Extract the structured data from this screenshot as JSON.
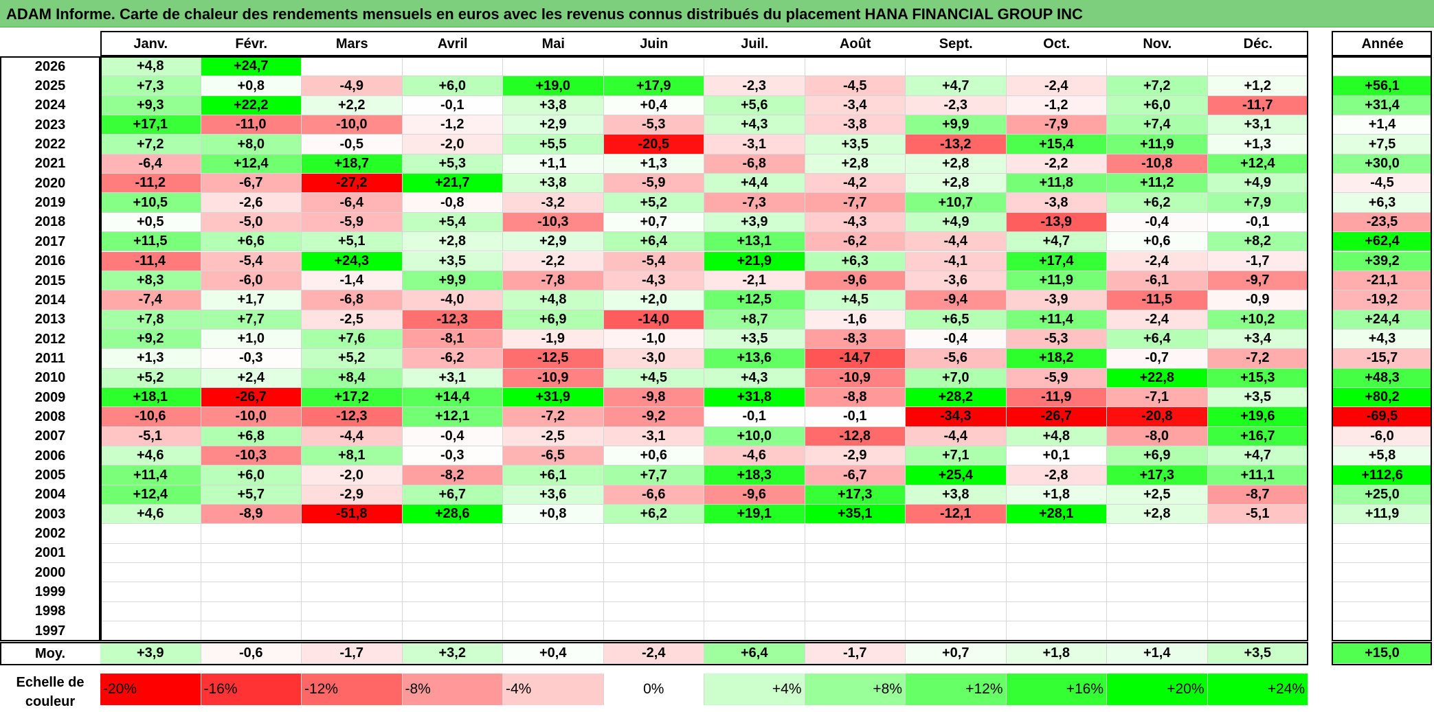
{
  "title": "ADAM Informe. Carte de chaleur des rendements mensuels en euros avec les revenus connus distribués du placement HANA FINANCIAL GROUP INC",
  "months": [
    "Janv.",
    "Févr.",
    "Mars",
    "Avril",
    "Mai",
    "Juin",
    "Juil.",
    "Août",
    "Sept.",
    "Oct.",
    "Nov.",
    "Déc."
  ],
  "annual_label": "Année",
  "average_label": "Moy.",
  "scale_label": "Echelle de couleur",
  "colors": {
    "positive": "#00ff00",
    "negative": "#ff0000",
    "neutral": "#ffffff",
    "title_bg": "#7dcf7d"
  },
  "chart_data": {
    "type": "heatmap",
    "title": "ADAM Informe. Carte de chaleur des rendements mensuels en euros avec les revenus connus distribués du placement HANA FINANCIAL GROUP INC",
    "columns": [
      "Janv.",
      "Févr.",
      "Mars",
      "Avril",
      "Mai",
      "Juin",
      "Juil.",
      "Août",
      "Sept.",
      "Oct.",
      "Nov.",
      "Déc."
    ],
    "rows": [
      {
        "year": "2026",
        "values": [
          "+4,8",
          "+24,7",
          "",
          "",
          "",
          "",
          "",
          "",
          "",
          "",
          "",
          ""
        ],
        "annual": ""
      },
      {
        "year": "2025",
        "values": [
          "+7,3",
          "+0,8",
          "-4,9",
          "+6,0",
          "+19,0",
          "+17,9",
          "-2,3",
          "-4,5",
          "+4,7",
          "-2,4",
          "+7,2",
          "+1,2"
        ],
        "annual": "+56,1"
      },
      {
        "year": "2024",
        "values": [
          "+9,3",
          "+22,2",
          "+2,2",
          "-0,1",
          "+3,8",
          "+0,4",
          "+5,6",
          "-3,4",
          "-2,3",
          "-1,2",
          "+6,0",
          "-11,7"
        ],
        "annual": "+31,4"
      },
      {
        "year": "2023",
        "values": [
          "+17,1",
          "-11,0",
          "-10,0",
          "-1,2",
          "+2,9",
          "-5,3",
          "+4,3",
          "-3,8",
          "+9,9",
          "-7,9",
          "+7,4",
          "+3,1"
        ],
        "annual": "+1,4"
      },
      {
        "year": "2022",
        "values": [
          "+7,2",
          "+8,0",
          "-0,5",
          "-2,0",
          "+5,5",
          "-20,5",
          "-3,1",
          "+3,5",
          "-13,2",
          "+15,4",
          "+11,9",
          "+1,3"
        ],
        "annual": "+7,5"
      },
      {
        "year": "2021",
        "values": [
          "-6,4",
          "+12,4",
          "+18,7",
          "+5,3",
          "+1,1",
          "+1,3",
          "-6,8",
          "+2,8",
          "+2,8",
          "-2,2",
          "-10,8",
          "+12,4"
        ],
        "annual": "+30,0"
      },
      {
        "year": "2020",
        "values": [
          "-11,2",
          "-6,7",
          "-27,2",
          "+21,7",
          "+3,8",
          "-5,9",
          "+4,4",
          "-4,2",
          "+2,8",
          "+11,8",
          "+11,2",
          "+4,9"
        ],
        "annual": "-4,5"
      },
      {
        "year": "2019",
        "values": [
          "+10,5",
          "-2,6",
          "-6,4",
          "-0,8",
          "-3,2",
          "+5,2",
          "-7,3",
          "-7,7",
          "+10,7",
          "-3,8",
          "+6,2",
          "+7,9"
        ],
        "annual": "+6,3"
      },
      {
        "year": "2018",
        "values": [
          "+0,5",
          "-5,0",
          "-5,9",
          "+5,4",
          "-10,3",
          "+0,7",
          "+3,9",
          "-4,3",
          "+4,9",
          "-13,9",
          "-0,4",
          "-0,1"
        ],
        "annual": "-23,5"
      },
      {
        "year": "2017",
        "values": [
          "+11,5",
          "+6,6",
          "+5,1",
          "+2,8",
          "+2,9",
          "+6,4",
          "+13,1",
          "-6,2",
          "-4,4",
          "+4,7",
          "+0,6",
          "+8,2"
        ],
        "annual": "+62,4"
      },
      {
        "year": "2016",
        "values": [
          "-11,4",
          "-5,4",
          "+24,3",
          "+3,5",
          "-2,2",
          "-5,4",
          "+21,9",
          "+6,3",
          "-4,1",
          "+17,4",
          "-2,4",
          "-1,7"
        ],
        "annual": "+39,2"
      },
      {
        "year": "2015",
        "values": [
          "+8,3",
          "-6,0",
          "-1,4",
          "+9,9",
          "-7,8",
          "-4,3",
          "-2,1",
          "-9,6",
          "-3,6",
          "+11,9",
          "-6,1",
          "-9,7"
        ],
        "annual": "-21,1"
      },
      {
        "year": "2014",
        "values": [
          "-7,4",
          "+1,7",
          "-6,8",
          "-4,0",
          "+4,8",
          "+2,0",
          "+12,5",
          "+4,5",
          "-9,4",
          "-3,9",
          "-11,5",
          "-0,9"
        ],
        "annual": "-19,2"
      },
      {
        "year": "2013",
        "values": [
          "+7,8",
          "+7,7",
          "-2,5",
          "-12,3",
          "+6,9",
          "-14,0",
          "+8,7",
          "-1,6",
          "+6,5",
          "+11,4",
          "-2,4",
          "+10,2"
        ],
        "annual": "+24,4"
      },
      {
        "year": "2012",
        "values": [
          "+9,2",
          "+1,0",
          "+7,6",
          "-8,1",
          "-1,9",
          "-1,0",
          "+3,5",
          "-8,3",
          "-0,4",
          "-5,3",
          "+6,4",
          "+3,4"
        ],
        "annual": "+4,3"
      },
      {
        "year": "2011",
        "values": [
          "+1,3",
          "-0,3",
          "+5,2",
          "-6,2",
          "-12,5",
          "-3,0",
          "+13,6",
          "-14,7",
          "-5,6",
          "+18,2",
          "-0,7",
          "-7,2"
        ],
        "annual": "-15,7"
      },
      {
        "year": "2010",
        "values": [
          "+5,2",
          "+2,4",
          "+8,4",
          "+3,1",
          "-10,9",
          "+4,5",
          "+4,3",
          "-10,9",
          "+7,0",
          "-5,9",
          "+22,8",
          "+15,3"
        ],
        "annual": "+48,3"
      },
      {
        "year": "2009",
        "values": [
          "+18,1",
          "-26,7",
          "+17,2",
          "+14,4",
          "+31,9",
          "-9,8",
          "+31,8",
          "-8,8",
          "+28,2",
          "-11,9",
          "-7,1",
          "+3,5"
        ],
        "annual": "+80,2"
      },
      {
        "year": "2008",
        "values": [
          "-10,6",
          "-10,0",
          "-12,3",
          "+12,1",
          "-7,2",
          "-9,2",
          "-0,1",
          "-0,1",
          "-34,3",
          "-26,7",
          "-20,8",
          "+19,6"
        ],
        "annual": "-69,5"
      },
      {
        "year": "2007",
        "values": [
          "-5,1",
          "+6,8",
          "-4,4",
          "-0,4",
          "-2,5",
          "-3,1",
          "+10,0",
          "-12,8",
          "-4,4",
          "+4,8",
          "-8,0",
          "+16,7"
        ],
        "annual": "-6,0"
      },
      {
        "year": "2006",
        "values": [
          "+4,6",
          "-10,3",
          "+8,1",
          "-0,3",
          "-6,5",
          "+0,6",
          "-4,6",
          "-2,9",
          "+7,1",
          "+0,1",
          "+6,9",
          "+4,7"
        ],
        "annual": "+5,8"
      },
      {
        "year": "2005",
        "values": [
          "+11,4",
          "+6,0",
          "-2,0",
          "-8,2",
          "+6,1",
          "+7,7",
          "+18,3",
          "-6,7",
          "+25,4",
          "-2,8",
          "+17,3",
          "+11,1"
        ],
        "annual": "+112,6"
      },
      {
        "year": "2004",
        "values": [
          "+12,4",
          "+5,7",
          "-2,9",
          "+6,7",
          "+3,6",
          "-6,6",
          "-9,6",
          "+17,3",
          "+3,8",
          "+1,8",
          "+2,5",
          "-8,7"
        ],
        "annual": "+25,0"
      },
      {
        "year": "2003",
        "values": [
          "+4,6",
          "-8,9",
          "-51,8",
          "+28,6",
          "+0,8",
          "+6,2",
          "+19,1",
          "+35,1",
          "-12,1",
          "+28,1",
          "+2,8",
          "-5,1"
        ],
        "annual": "+11,9"
      },
      {
        "year": "2002",
        "values": [
          "",
          "",
          "",
          "",
          "",
          "",
          "",
          "",
          "",
          "",
          "",
          ""
        ],
        "annual": ""
      },
      {
        "year": "2001",
        "values": [
          "",
          "",
          "",
          "",
          "",
          "",
          "",
          "",
          "",
          "",
          "",
          ""
        ],
        "annual": ""
      },
      {
        "year": "2000",
        "values": [
          "",
          "",
          "",
          "",
          "",
          "",
          "",
          "",
          "",
          "",
          "",
          ""
        ],
        "annual": ""
      },
      {
        "year": "1999",
        "values": [
          "",
          "",
          "",
          "",
          "",
          "",
          "",
          "",
          "",
          "",
          "",
          ""
        ],
        "annual": ""
      },
      {
        "year": "1998",
        "values": [
          "",
          "",
          "",
          "",
          "",
          "",
          "",
          "",
          "",
          "",
          "",
          ""
        ],
        "annual": ""
      },
      {
        "year": "1997",
        "values": [
          "",
          "",
          "",
          "",
          "",
          "",
          "",
          "",
          "",
          "",
          "",
          ""
        ],
        "annual": ""
      }
    ],
    "average": {
      "values": [
        "+3,9",
        "-0,6",
        "-1,7",
        "+3,2",
        "+0,4",
        "-2,4",
        "+6,4",
        "-1,7",
        "+0,7",
        "+1,8",
        "+1,4",
        "+3,5"
      ],
      "annual": "+15,0"
    },
    "scale": [
      "-20%",
      "-16%",
      "-12%",
      "-8%",
      "-4%",
      "0%",
      "+4%",
      "+8%",
      "+12%",
      "+16%",
      "+20%",
      "+24%"
    ],
    "scale_range": [
      -20,
      24
    ]
  }
}
